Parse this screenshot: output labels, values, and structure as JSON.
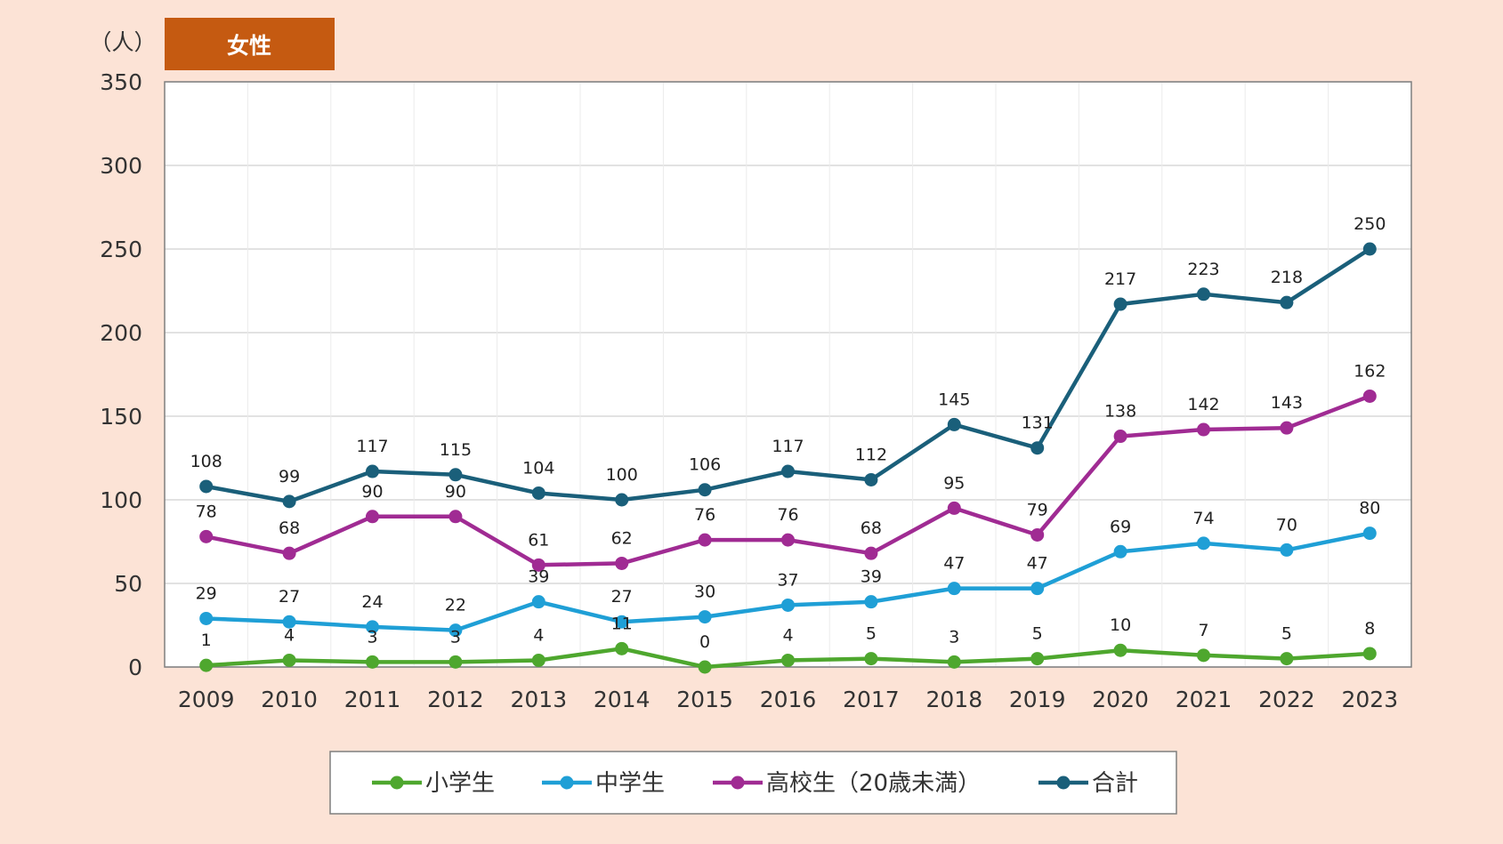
{
  "title": "女性",
  "unit": "（人）",
  "colors": {
    "page_bg": "#fce3d6",
    "plot_bg": "#ffffff",
    "title_bg": "#c55a11",
    "grid": "#d9d9d9",
    "elementary": "#4ea72e",
    "junior_high": "#1f9fd6",
    "high_school": "#a02b93",
    "total": "#1a5f7a"
  },
  "chart_data": {
    "type": "line",
    "title": "女性",
    "ylabel": "（人）",
    "ylim": [
      0,
      350
    ],
    "yticks": [
      "0",
      "50",
      "100",
      "150",
      "200",
      "250",
      "300",
      "350"
    ],
    "grid": true,
    "legend_position": "bottom",
    "categories": [
      "2009",
      "2010",
      "2011",
      "2012",
      "2013",
      "2014",
      "2015",
      "2016",
      "2017",
      "2018",
      "2019",
      "2020",
      "2021",
      "2022",
      "2023"
    ],
    "series": [
      {
        "name": "小学生",
        "color": "#4ea72e",
        "values": [
          1,
          4,
          3,
          3,
          4,
          11,
          0,
          4,
          5,
          3,
          5,
          10,
          7,
          5,
          8
        ]
      },
      {
        "name": "中学生",
        "color": "#1f9fd6",
        "values": [
          29,
          27,
          24,
          22,
          39,
          27,
          30,
          37,
          39,
          47,
          47,
          69,
          74,
          70,
          80
        ]
      },
      {
        "name": "高校生（20歳未満）",
        "color": "#a02b93",
        "values": [
          78,
          68,
          90,
          90,
          61,
          62,
          76,
          76,
          68,
          95,
          79,
          138,
          142,
          143,
          162
        ]
      },
      {
        "name": "合計",
        "color": "#1a5f7a",
        "values": [
          108,
          99,
          117,
          115,
          104,
          100,
          106,
          117,
          112,
          145,
          131,
          217,
          223,
          218,
          250
        ]
      }
    ]
  }
}
